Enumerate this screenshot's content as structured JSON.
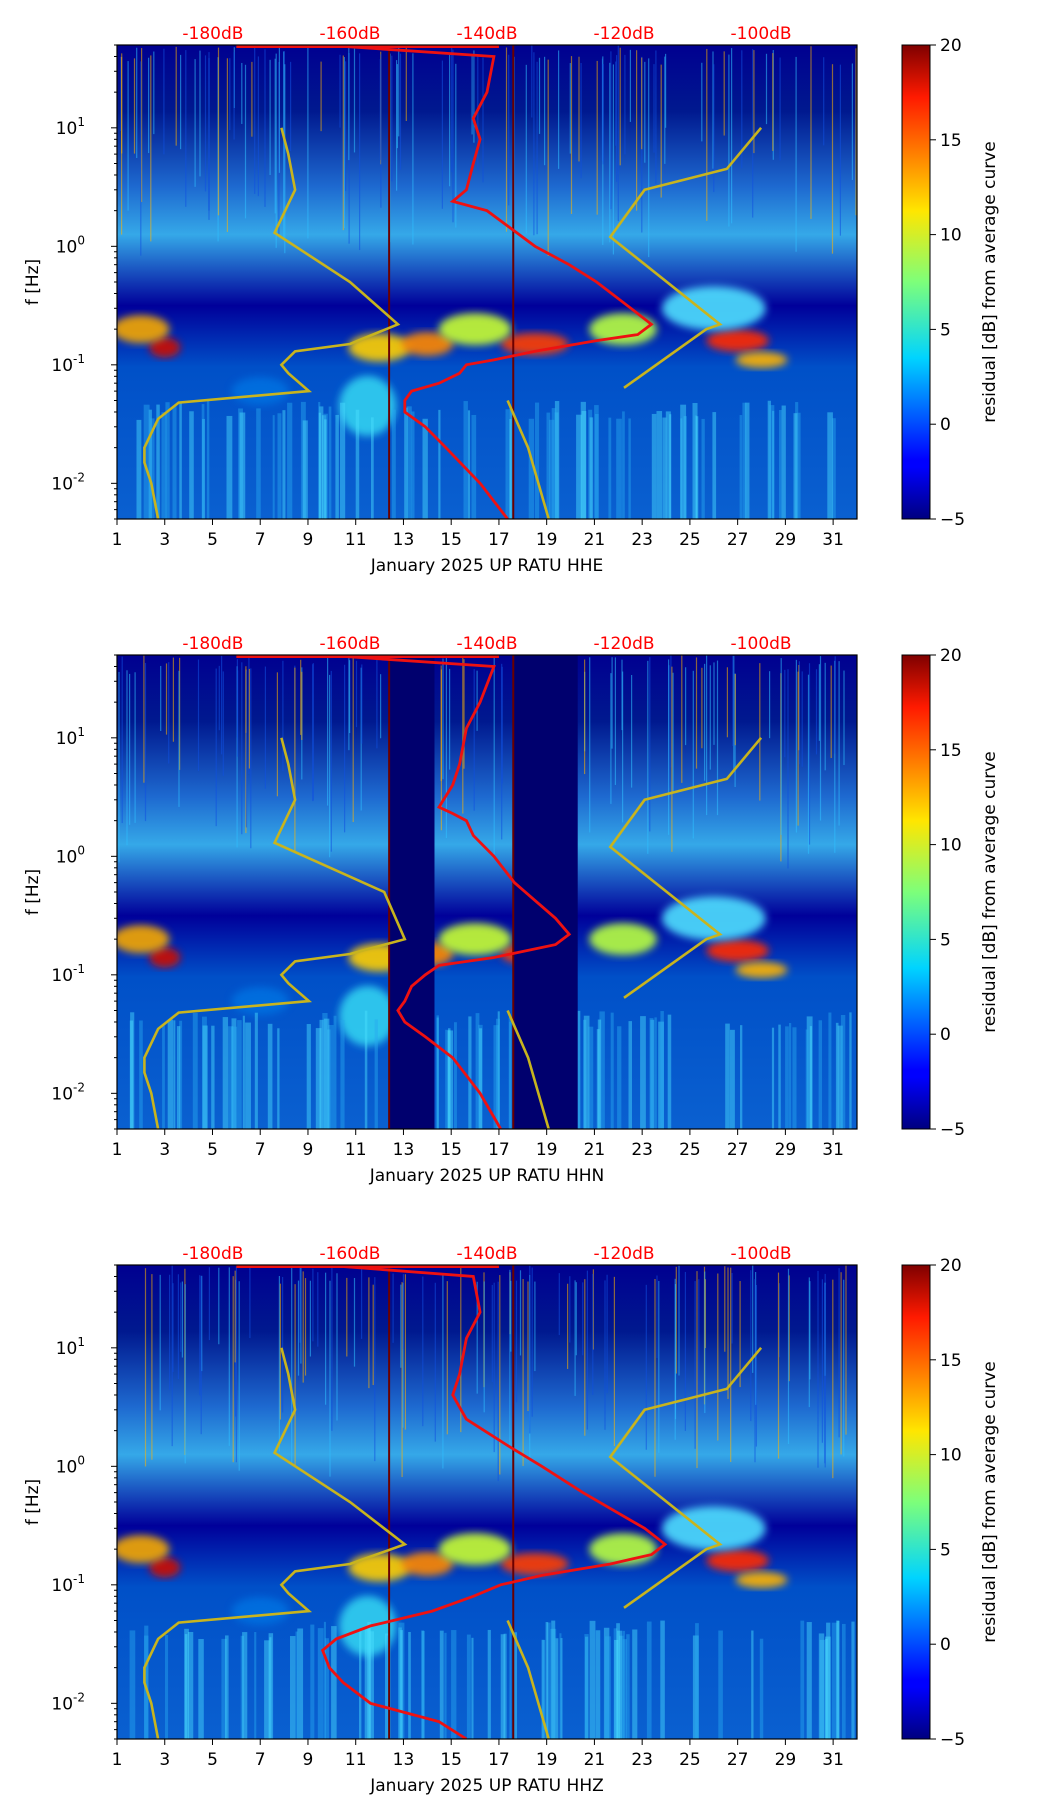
{
  "chart_data": [
    {
      "type": "heatmap",
      "id": "hhe",
      "xlabel": "January 2025 UP RATU  HHE",
      "ylabel": "f [Hz]",
      "x_ticks": [
        "1",
        "3",
        "5",
        "7",
        "9",
        "11",
        "13",
        "15",
        "17",
        "19",
        "21",
        "23",
        "25",
        "27",
        "29",
        "31"
      ],
      "x_range": [
        1,
        32
      ],
      "y_range_hz": [
        0.005,
        50
      ],
      "y_ticks": [
        {
          "exp": "-2",
          "value": 0.01
        },
        {
          "exp": "-1",
          "value": 0.1
        },
        {
          "exp": "0",
          "value": 1
        },
        {
          "exp": "1",
          "value": 10
        }
      ],
      "top_axis_labels": [
        "-180dB",
        "-160dB",
        "-140dB",
        "-120dB",
        "-100dB"
      ],
      "top_axis_db_values": [
        -180,
        -160,
        -140,
        -120,
        -100
      ],
      "colorbar": {
        "label": "residual [dB] from average curve",
        "ticks": [
          "20",
          "15",
          "10",
          "5",
          "0",
          "−5"
        ],
        "range": [
          -5,
          20
        ]
      },
      "gap_days": [],
      "red_curve": [
        [
          50,
          -164
        ],
        [
          40,
          -139
        ],
        [
          20,
          -140
        ],
        [
          12,
          -142
        ],
        [
          8,
          -141
        ],
        [
          5,
          -142
        ],
        [
          3,
          -143
        ],
        [
          2.4,
          -145
        ],
        [
          2,
          -140
        ],
        [
          1,
          -133
        ],
        [
          0.7,
          -128
        ],
        [
          0.5,
          -124
        ],
        [
          0.3,
          -119
        ],
        [
          0.22,
          -116
        ],
        [
          0.18,
          -118
        ],
        [
          0.16,
          -124
        ],
        [
          0.13,
          -133
        ],
        [
          0.11,
          -139
        ],
        [
          0.1,
          -143
        ],
        [
          0.085,
          -144
        ],
        [
          0.07,
          -147
        ],
        [
          0.06,
          -151
        ],
        [
          0.05,
          -152
        ],
        [
          0.04,
          -152
        ],
        [
          0.03,
          -149
        ],
        [
          0.02,
          -146
        ],
        [
          0.01,
          -141
        ],
        [
          0.005,
          -137
        ]
      ],
      "yellow_curve": [
        [
          10,
          -170
        ],
        [
          6,
          -169
        ],
        [
          3,
          -168
        ],
        [
          1.3,
          -171
        ],
        [
          0.5,
          -160
        ],
        [
          0.22,
          -153
        ],
        [
          0.15,
          -160
        ],
        [
          0.13,
          -168
        ],
        [
          0.1,
          -170
        ],
        [
          0.085,
          -169
        ],
        [
          0.06,
          -166
        ],
        [
          0.048,
          -185
        ],
        [
          0.035,
          -188
        ],
        [
          0.02,
          -190
        ],
        [
          0.015,
          -190
        ],
        [
          0.01,
          -189
        ],
        [
          0.005,
          -188
        ],
        [
          0.05,
          -137
        ],
        [
          0.02,
          -134
        ],
        [
          0.005,
          -131
        ],
        [
          0.064,
          -120
        ],
        [
          0.2,
          -108
        ],
        [
          0.22,
          -106
        ],
        [
          1.2,
          -122
        ],
        [
          3,
          -117
        ],
        [
          4.5,
          -105
        ],
        [
          10,
          -100
        ]
      ]
    },
    {
      "type": "heatmap",
      "id": "hhn",
      "xlabel": "January 2025 UP RATU  HHN",
      "ylabel": "f [Hz]",
      "x_ticks": [
        "1",
        "3",
        "5",
        "7",
        "9",
        "11",
        "13",
        "15",
        "17",
        "19",
        "21",
        "23",
        "25",
        "27",
        "29",
        "31"
      ],
      "x_range": [
        1,
        32
      ],
      "y_range_hz": [
        0.005,
        50
      ],
      "y_ticks": [
        {
          "exp": "-2",
          "value": 0.01
        },
        {
          "exp": "-1",
          "value": 0.1
        },
        {
          "exp": "0",
          "value": 1
        },
        {
          "exp": "1",
          "value": 10
        }
      ],
      "top_axis_labels": [
        "-180dB",
        "-160dB",
        "-140dB",
        "-120dB",
        "-100dB"
      ],
      "top_axis_db_values": [
        -180,
        -160,
        -140,
        -120,
        -100
      ],
      "colorbar": {
        "label": "residual [dB] from average curve",
        "ticks": [
          "20",
          "15",
          "10",
          "5",
          "0",
          "−5"
        ],
        "range": [
          -5,
          20
        ]
      },
      "gap_days": [
        [
          12.4,
          14.3
        ],
        [
          17.6,
          20.3
        ]
      ],
      "red_curve": [
        [
          50,
          -164
        ],
        [
          40,
          -139
        ],
        [
          20,
          -141
        ],
        [
          12,
          -143
        ],
        [
          6,
          -144
        ],
        [
          4,
          -145
        ],
        [
          2.6,
          -147
        ],
        [
          2.3,
          -145
        ],
        [
          2,
          -143
        ],
        [
          1.5,
          -142
        ],
        [
          1,
          -139
        ],
        [
          0.6,
          -136
        ],
        [
          0.3,
          -130
        ],
        [
          0.22,
          -128
        ],
        [
          0.18,
          -130
        ],
        [
          0.14,
          -139
        ],
        [
          0.12,
          -147
        ],
        [
          0.1,
          -149
        ],
        [
          0.08,
          -151
        ],
        [
          0.06,
          -152
        ],
        [
          0.05,
          -153
        ],
        [
          0.04,
          -152
        ],
        [
          0.03,
          -149
        ],
        [
          0.02,
          -145
        ],
        [
          0.01,
          -141
        ],
        [
          0.005,
          -138
        ]
      ],
      "yellow_curve": [
        [
          10,
          -170
        ],
        [
          6,
          -169
        ],
        [
          3,
          -168
        ],
        [
          1.3,
          -171
        ],
        [
          0.5,
          -155
        ],
        [
          0.2,
          -152
        ],
        [
          0.15,
          -160
        ],
        [
          0.13,
          -168
        ],
        [
          0.1,
          -170
        ],
        [
          0.085,
          -169
        ],
        [
          0.06,
          -166
        ],
        [
          0.048,
          -185
        ],
        [
          0.035,
          -188
        ],
        [
          0.02,
          -190
        ],
        [
          0.015,
          -190
        ],
        [
          0.01,
          -189
        ],
        [
          0.005,
          -188
        ],
        [
          0.05,
          -137
        ],
        [
          0.02,
          -134
        ],
        [
          0.005,
          -131
        ],
        [
          0.064,
          -120
        ],
        [
          0.2,
          -108
        ],
        [
          0.22,
          -106
        ],
        [
          1.2,
          -122
        ],
        [
          3,
          -117
        ],
        [
          4.5,
          -105
        ],
        [
          10,
          -100
        ]
      ]
    },
    {
      "type": "heatmap",
      "id": "hhz",
      "xlabel": "January 2025 UP RATU  HHZ",
      "ylabel": "f [Hz]",
      "x_ticks": [
        "1",
        "3",
        "5",
        "7",
        "9",
        "11",
        "13",
        "15",
        "17",
        "19",
        "21",
        "23",
        "25",
        "27",
        "29",
        "31"
      ],
      "x_range": [
        1,
        32
      ],
      "y_range_hz": [
        0.005,
        50
      ],
      "y_ticks": [
        {
          "exp": "-2",
          "value": 0.01
        },
        {
          "exp": "-1",
          "value": 0.1
        },
        {
          "exp": "0",
          "value": 1
        },
        {
          "exp": "1",
          "value": 10
        }
      ],
      "top_axis_labels": [
        "-180dB",
        "-160dB",
        "-140dB",
        "-120dB",
        "-100dB"
      ],
      "top_axis_db_values": [
        -180,
        -160,
        -140,
        -120,
        -100
      ],
      "colorbar": {
        "label": "residual [dB] from average curve",
        "ticks": [
          "20",
          "15",
          "10",
          "5",
          "0",
          "−5"
        ],
        "range": [
          -5,
          20
        ]
      },
      "gap_days": [],
      "red_curve": [
        [
          50,
          -164
        ],
        [
          40,
          -142
        ],
        [
          20,
          -141
        ],
        [
          12,
          -143
        ],
        [
          6,
          -144
        ],
        [
          4,
          -145
        ],
        [
          2.5,
          -143
        ],
        [
          1.5,
          -137
        ],
        [
          1,
          -132
        ],
        [
          0.6,
          -126
        ],
        [
          0.3,
          -117
        ],
        [
          0.22,
          -114
        ],
        [
          0.18,
          -116
        ],
        [
          0.15,
          -122
        ],
        [
          0.12,
          -132
        ],
        [
          0.1,
          -138
        ],
        [
          0.08,
          -142
        ],
        [
          0.06,
          -148
        ],
        [
          0.045,
          -157
        ],
        [
          0.035,
          -162
        ],
        [
          0.028,
          -164
        ],
        [
          0.02,
          -163
        ],
        [
          0.015,
          -161
        ],
        [
          0.01,
          -157
        ],
        [
          0.007,
          -147
        ],
        [
          0.005,
          -143
        ]
      ],
      "yellow_curve": [
        [
          10,
          -170
        ],
        [
          6,
          -169
        ],
        [
          3,
          -168
        ],
        [
          1.3,
          -171
        ],
        [
          0.5,
          -160
        ],
        [
          0.22,
          -152
        ],
        [
          0.15,
          -160
        ],
        [
          0.13,
          -168
        ],
        [
          0.1,
          -170
        ],
        [
          0.085,
          -169
        ],
        [
          0.06,
          -166
        ],
        [
          0.048,
          -185
        ],
        [
          0.035,
          -188
        ],
        [
          0.02,
          -190
        ],
        [
          0.015,
          -190
        ],
        [
          0.01,
          -189
        ],
        [
          0.005,
          -188
        ],
        [
          0.05,
          -137
        ],
        [
          0.02,
          -134
        ],
        [
          0.005,
          -131
        ],
        [
          0.064,
          -120
        ],
        [
          0.2,
          -108
        ],
        [
          0.22,
          -106
        ],
        [
          1.2,
          -122
        ],
        [
          3,
          -117
        ],
        [
          4.5,
          -105
        ],
        [
          10,
          -100
        ]
      ]
    }
  ],
  "colors": {
    "db_label": "#ff0000",
    "red_curve": "#ee1111",
    "yellow_curve": "#c8b41e",
    "background": "#00007a",
    "gap": "#00006e"
  }
}
